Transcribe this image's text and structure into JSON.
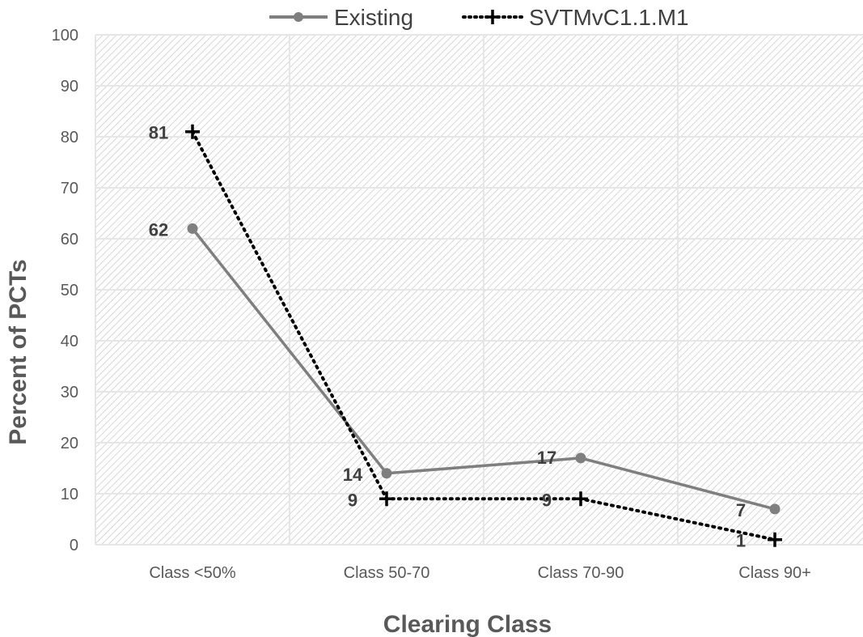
{
  "chart_data": {
    "type": "line",
    "categories": [
      "Class <50%",
      "Class 50-70",
      "Class 70-90",
      "Class 90+"
    ],
    "series": [
      {
        "name": "Existing",
        "values": [
          62,
          14,
          17,
          7
        ],
        "color": "#7f7f7f",
        "line_style": "solid",
        "marker": "circle"
      },
      {
        "name": "SVTMvC1.1.M1",
        "values": [
          81,
          9,
          9,
          1
        ],
        "color": "#000000",
        "line_style": "dotted",
        "marker": "plus"
      }
    ],
    "xlabel": "Clearing Class",
    "ylabel": "Percent of PCTs",
    "ylim": [
      0,
      100
    ],
    "yticks": [
      "0",
      "10",
      "20",
      "30",
      "40",
      "50",
      "60",
      "70",
      "80",
      "90",
      "100"
    ],
    "grid": true,
    "legend_position": "top"
  }
}
